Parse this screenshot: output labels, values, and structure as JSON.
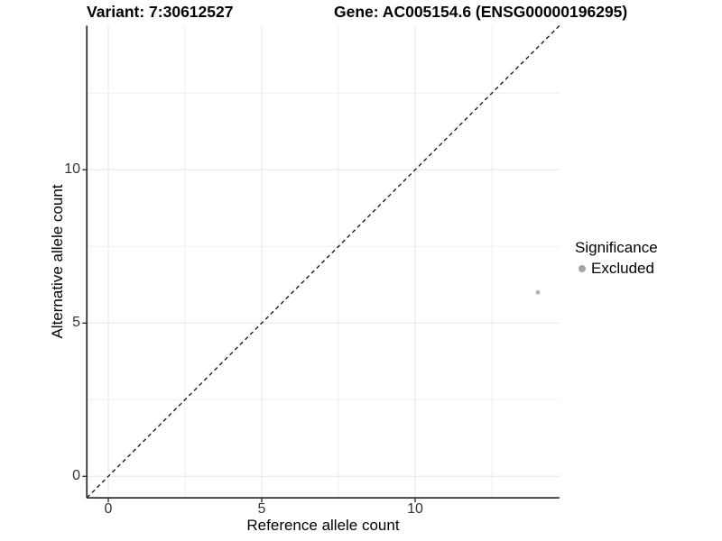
{
  "chart_data": {
    "type": "scatter",
    "title_left": "Variant: 7:30612527",
    "title_right": "Gene: AC005154.6 (ENSG00000196295)",
    "xlabel": "Reference allele count",
    "ylabel": "Alternative allele count",
    "xlim": [
      -0.7,
      14.7
    ],
    "ylim": [
      -0.7,
      14.7
    ],
    "x_major_ticks": [
      0,
      5,
      10
    ],
    "y_major_ticks": [
      0,
      5,
      10
    ],
    "x_minor_gridlines": [
      2.5,
      7.5,
      12.5
    ],
    "y_minor_gridlines": [
      2.5,
      7.5,
      12.5
    ],
    "grid": "major and minor light-grey gridlines on white panel",
    "identity_line": {
      "label": "y = x",
      "slope": 1,
      "intercept": 0,
      "style": "dashed",
      "color": "#111111"
    },
    "series": [
      {
        "name": "Excluded",
        "color": "#b3b3b3",
        "points": [
          [
            14,
            6
          ]
        ]
      }
    ],
    "legend": {
      "title": "Significance",
      "position": "right",
      "entries": [
        {
          "label": "Excluded",
          "color": "#a3a3a3"
        }
      ]
    },
    "colors": {
      "axis_line": "#333333",
      "tick_label": "#333333",
      "grid_major": "#e5e5e5",
      "grid_minor": "#efefef",
      "background": "#ffffff"
    }
  }
}
